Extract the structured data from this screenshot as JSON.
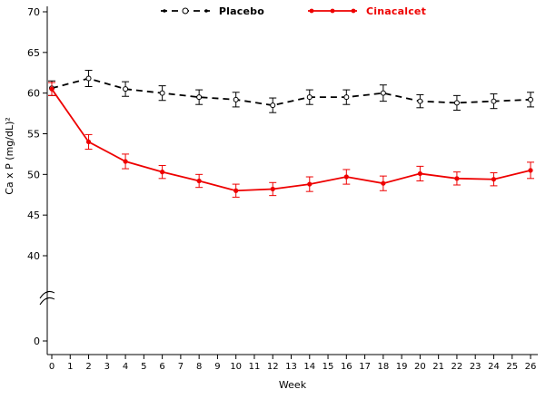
{
  "chart_data": {
    "type": "line",
    "title": "",
    "xlabel": "Week",
    "ylabel": "Ca x P (mg/dL)²",
    "x_ticks": [
      0,
      1,
      2,
      3,
      4,
      5,
      6,
      7,
      8,
      9,
      10,
      11,
      12,
      13,
      14,
      15,
      16,
      17,
      18,
      19,
      20,
      21,
      22,
      23,
      24,
      25,
      26
    ],
    "y_ticks": [
      0,
      40,
      45,
      50,
      55,
      60,
      65,
      70
    ],
    "y_axis_break": true,
    "ylim_top": [
      40,
      70
    ],
    "grid": false,
    "legend_position": "top",
    "x": [
      0,
      2,
      4,
      6,
      8,
      10,
      12,
      14,
      16,
      18,
      20,
      22,
      24,
      26
    ],
    "series": [
      {
        "name": "Placebo",
        "color": "#000000",
        "line_style": "dashed",
        "dash": "7,5",
        "marker": "open-circle",
        "values": [
          60.6,
          61.8,
          60.5,
          60.0,
          59.5,
          59.2,
          58.5,
          59.5,
          59.5,
          60.0,
          59.0,
          58.8,
          59.0,
          59.2
        ],
        "errors": [
          0.9,
          1.0,
          0.9,
          0.9,
          0.9,
          0.9,
          0.9,
          0.9,
          0.9,
          1.0,
          0.8,
          0.9,
          0.9,
          0.9
        ]
      },
      {
        "name": "Cinacalcet",
        "color": "#ee0000",
        "line_style": "solid",
        "dash": "",
        "marker": "filled-circle",
        "values": [
          60.5,
          54.0,
          51.6,
          50.3,
          49.2,
          48.0,
          48.2,
          48.8,
          49.7,
          48.9,
          50.1,
          49.5,
          49.4,
          50.5
        ],
        "errors": [
          0.8,
          0.9,
          0.9,
          0.8,
          0.8,
          0.8,
          0.8,
          0.9,
          0.9,
          0.9,
          0.9,
          0.8,
          0.8,
          1.0
        ]
      }
    ]
  }
}
